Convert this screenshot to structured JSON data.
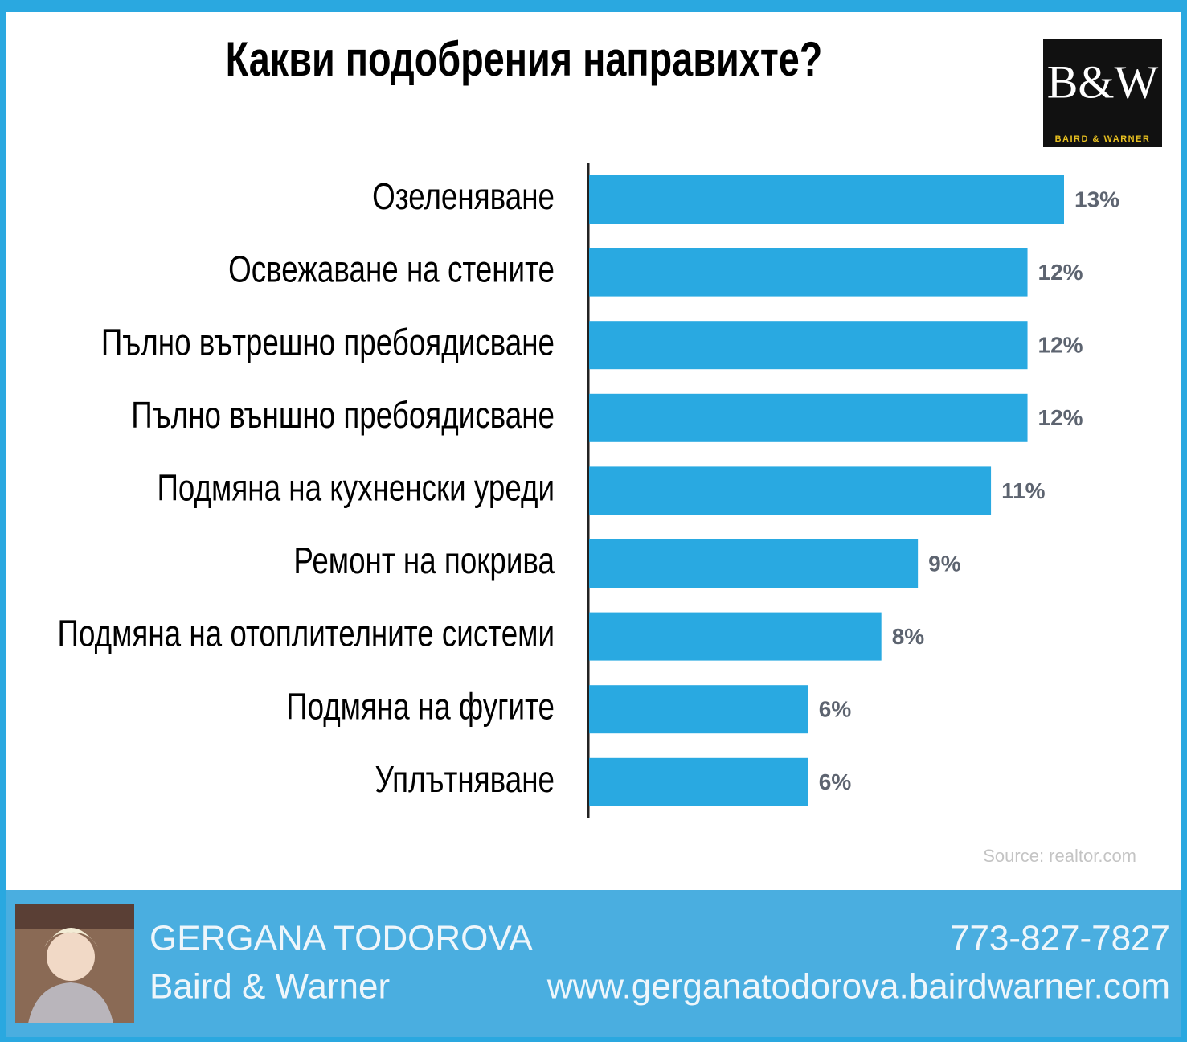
{
  "chart_data": {
    "type": "hbar",
    "title": "Какви подобрения направихте?",
    "categories": [
      "Озеленяване",
      "Освежаване на стените",
      "Пълно вътрешно пребоядисване",
      "Пълно външно пребоядисване",
      "Подмяна на кухненски уреди",
      "Ремонт на покрива",
      "Подмяна на отоплителните системи",
      "Подмяна на фугите",
      "Уплътняване"
    ],
    "values": [
      13,
      12,
      12,
      12,
      11,
      9,
      8,
      6,
      6
    ],
    "value_labels": [
      "13%",
      "12%",
      "12%",
      "12%",
      "11%",
      "9%",
      "8%",
      "6%",
      "6%"
    ],
    "color": "#29a9e1",
    "source": "Source: realtor.com"
  },
  "logo": {
    "mark": "B&W",
    "name": "BAIRD & WARNER"
  },
  "footer": {
    "name": "GERGANA TODOROVA",
    "company": "Baird & Warner",
    "phone": "773-827-7827",
    "website": "www.gerganatodorova.bairdwarner.com"
  }
}
